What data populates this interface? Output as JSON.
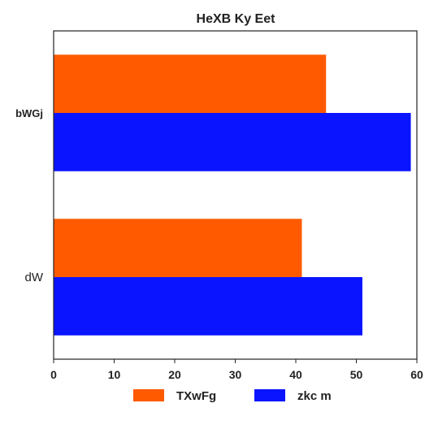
{
  "chart_data": {
    "type": "bar",
    "orientation": "horizontal",
    "title": "HeXB Ky Eet",
    "categories": [
      "bWGj",
      "dW"
    ],
    "series": [
      {
        "name": "TXwFg",
        "color": "#ff5a00",
        "values": [
          45,
          41
        ]
      },
      {
        "name": "zkc m",
        "color": "#0a14ff",
        "values": [
          59,
          51
        ]
      }
    ],
    "xlim": [
      0,
      60
    ],
    "xticks": [
      "0",
      "10",
      "20",
      "30",
      "40",
      "50",
      "60"
    ],
    "grid": false,
    "legend_placement": "bottom-center"
  }
}
